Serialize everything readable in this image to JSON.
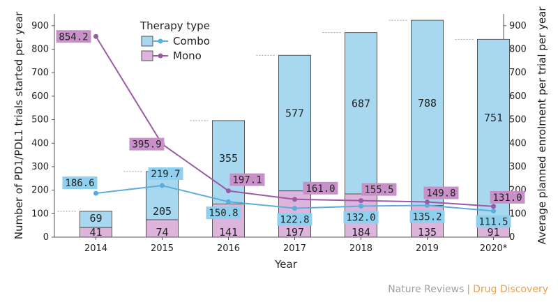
{
  "chart_data": {
    "type": "bar+line",
    "categories": [
      "2014",
      "2015",
      "2016",
      "2017",
      "2018",
      "2019",
      "2020*"
    ],
    "bar_series": [
      {
        "name": "Mono",
        "values": [
          41,
          74,
          141,
          197,
          184,
          135,
          91
        ],
        "color": "#dcb4dc"
      },
      {
        "name": "Combo",
        "values": [
          69,
          205,
          355,
          577,
          687,
          788,
          751
        ],
        "color": "#a8d8f0"
      }
    ],
    "line_series": [
      {
        "name": "Combo",
        "values": [
          186.6,
          219.7,
          150.8,
          122.8,
          132.0,
          135.2,
          111.5
        ],
        "labels": [
          "186.6",
          "219.7",
          "150.8",
          "122.8",
          "132.0",
          "135.2",
          "111.5"
        ],
        "color": "#5aaedc",
        "label_bg": "#8fd0ee"
      },
      {
        "name": "Mono",
        "values": [
          854.2,
          395.9,
          197.1,
          161.0,
          155.5,
          149.8,
          131.0
        ],
        "labels": [
          "854.2",
          "395.9",
          "197.1",
          "161.0",
          "155.5",
          "149.8",
          "131.0"
        ],
        "color": "#9b5aa6",
        "label_bg": "#c890c8"
      }
    ],
    "left_axis": {
      "label": "Number of PD1/PDL1 trials started per year",
      "ylim": [
        0,
        950
      ],
      "ticks": [
        0,
        100,
        200,
        300,
        400,
        500,
        600,
        700,
        800,
        900
      ]
    },
    "right_axis": {
      "label": "Average planned enrolment per trial per year",
      "ylim": [
        0,
        950
      ],
      "ticks": [
        0,
        100,
        200,
        300,
        400,
        500,
        600,
        700,
        800,
        900
      ]
    },
    "xlabel": "Year",
    "legend": {
      "title": "Therapy type",
      "items": [
        "Combo",
        "Mono"
      ],
      "position": "top-left"
    }
  },
  "footer": {
    "publisher": "Nature Reviews",
    "separator": "|",
    "journal": "Drug Discovery"
  }
}
